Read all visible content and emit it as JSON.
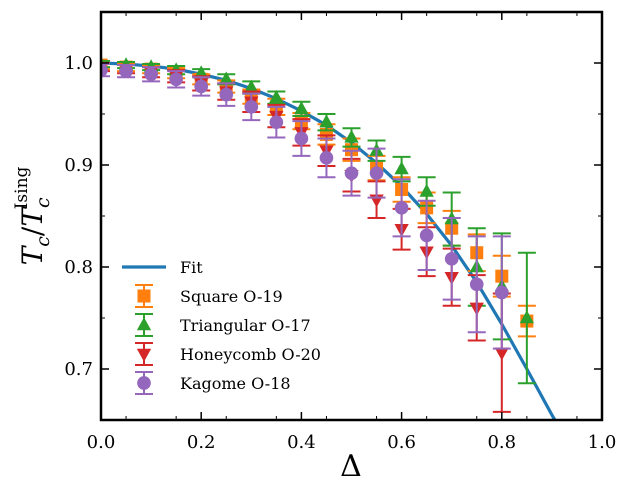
{
  "chart_data": {
    "type": "scatter",
    "xlabel": "Δ",
    "ylabel": {
      "main": "T",
      "sub1": "c",
      "slash": "/",
      "main2": "T",
      "sub2": "c",
      "sup": "Ising"
    },
    "xlim": [
      0.0,
      1.0
    ],
    "ylim": [
      0.65,
      1.05
    ],
    "x_ticks": [
      "0.0",
      "0.2",
      "0.4",
      "0.6",
      "0.8",
      "1.0"
    ],
    "y_ticks": [
      "0.7",
      "0.8",
      "0.9",
      "1.0"
    ],
    "legend_position": "lower-left",
    "fit": {
      "name": "Fit",
      "color": "#1f77b4",
      "x": [
        0.0,
        0.05,
        0.1,
        0.15,
        0.2,
        0.25,
        0.3,
        0.35,
        0.4,
        0.45,
        0.5,
        0.55,
        0.6,
        0.65,
        0.7,
        0.75,
        0.8,
        0.85,
        0.9,
        0.95
      ],
      "y": [
        1.0,
        0.999,
        0.997,
        0.994,
        0.989,
        0.983,
        0.975,
        0.965,
        0.953,
        0.939,
        0.922,
        0.902,
        0.879,
        0.852,
        0.821,
        0.785,
        0.744,
        0.7,
        0.655,
        0.612
      ]
    },
    "series": [
      {
        "name": "Square O-19",
        "marker": "square",
        "color": "#ff7f0e",
        "x": [
          0.0,
          0.05,
          0.1,
          0.15,
          0.2,
          0.25,
          0.3,
          0.35,
          0.4,
          0.45,
          0.5,
          0.55,
          0.6,
          0.65,
          0.7,
          0.75,
          0.8,
          0.85
        ],
        "y": [
          0.998,
          0.996,
          0.994,
          0.99,
          0.984,
          0.977,
          0.967,
          0.957,
          0.943,
          0.93,
          0.915,
          0.897,
          0.876,
          0.858,
          0.838,
          0.814,
          0.791,
          0.747
        ],
        "err": [
          0.004,
          0.004,
          0.004,
          0.005,
          0.005,
          0.006,
          0.007,
          0.008,
          0.008,
          0.01,
          0.011,
          0.012,
          0.012,
          0.015,
          0.017,
          0.018,
          0.02,
          0.015
        ]
      },
      {
        "name": "Triangular O-17",
        "marker": "triangle-up",
        "color": "#2ca02c",
        "x": [
          0.0,
          0.05,
          0.1,
          0.15,
          0.2,
          0.25,
          0.3,
          0.35,
          0.4,
          0.45,
          0.5,
          0.55,
          0.6,
          0.65,
          0.7,
          0.75,
          0.8,
          0.85
        ],
        "y": [
          0.999,
          0.998,
          0.996,
          0.993,
          0.99,
          0.984,
          0.976,
          0.966,
          0.955,
          0.942,
          0.927,
          0.914,
          0.896,
          0.874,
          0.847,
          0.8,
          0.781,
          0.75
        ],
        "err": [
          0.003,
          0.003,
          0.003,
          0.004,
          0.004,
          0.005,
          0.006,
          0.006,
          0.007,
          0.008,
          0.009,
          0.01,
          0.012,
          0.014,
          0.026,
          0.038,
          0.052,
          0.064
        ]
      },
      {
        "name": "Honeycomb O-20",
        "marker": "triangle-down",
        "color": "#d62728",
        "x": [
          0.0,
          0.05,
          0.1,
          0.15,
          0.2,
          0.25,
          0.3,
          0.35,
          0.4,
          0.45,
          0.5,
          0.55,
          0.6,
          0.65,
          0.7,
          0.75,
          0.8
        ],
        "y": [
          0.996,
          0.994,
          0.991,
          0.987,
          0.98,
          0.972,
          0.962,
          0.948,
          0.932,
          0.914,
          0.89,
          0.866,
          0.837,
          0.815,
          0.79,
          0.76,
          0.716
        ],
        "err": [
          0.004,
          0.004,
          0.005,
          0.006,
          0.007,
          0.008,
          0.01,
          0.011,
          0.013,
          0.015,
          0.016,
          0.018,
          0.02,
          0.024,
          0.028,
          0.032,
          0.058
        ]
      },
      {
        "name": "Kagome O-18",
        "marker": "circle",
        "color": "#9467bd",
        "x": [
          0.0,
          0.05,
          0.1,
          0.15,
          0.2,
          0.25,
          0.3,
          0.35,
          0.4,
          0.45,
          0.5,
          0.55,
          0.6,
          0.65,
          0.7,
          0.75,
          0.8
        ],
        "y": [
          0.993,
          0.992,
          0.989,
          0.984,
          0.977,
          0.969,
          0.957,
          0.942,
          0.926,
          0.907,
          0.892,
          0.892,
          0.858,
          0.831,
          0.808,
          0.783,
          0.775
        ],
        "err": [
          0.006,
          0.006,
          0.007,
          0.008,
          0.009,
          0.011,
          0.013,
          0.015,
          0.017,
          0.019,
          0.022,
          0.024,
          0.028,
          0.034,
          0.04,
          0.047,
          0.055
        ]
      }
    ]
  }
}
